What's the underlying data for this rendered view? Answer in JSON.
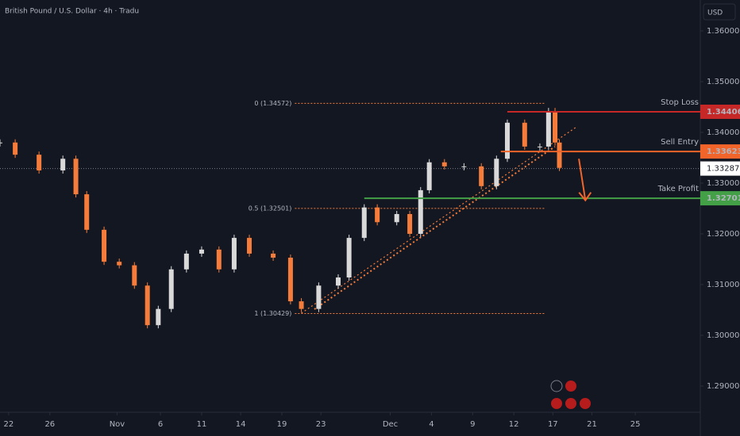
{
  "chart_data": {
    "type": "candlestick",
    "title": "British Pound / U.S. Dollar · 4h · Tradu",
    "currency": "USD",
    "up_color": "#d9d9d9",
    "down_color": "#f57c3a",
    "x": [
      0,
      7,
      18,
      29,
      35,
      40,
      48,
      55,
      62,
      68,
      73,
      79,
      86,
      93,
      101,
      108,
      115,
      126,
      134,
      139,
      147,
      156,
      161,
      168,
      174,
      183,
      189,
      194,
      198,
      205,
      214,
      222,
      229,
      234,
      242,
      249,
      253,
      256,
      258
    ],
    "close": [
      1.338,
      1.3356,
      1.3325,
      1.3348,
      1.3278,
      1.3208,
      1.3145,
      1.3138,
      1.3098,
      1.302,
      1.3052,
      1.313,
      1.3161,
      1.3169,
      1.313,
      1.3192,
      1.3161,
      1.3153,
      1.3067,
      1.3052,
      1.3098,
      1.3114,
      1.3192,
      1.3252,
      1.3223,
      1.3239,
      1.32,
      1.3286,
      1.3341,
      1.3333,
      1.3333,
      1.3294,
      1.3348,
      1.3419,
      1.3372,
      1.3372,
      1.3442,
      1.338,
      1.333
    ],
    "last_price": 1.33287,
    "xlim": [
      0,
      323
    ],
    "ylim": [
      1.28484,
      1.36609
    ],
    "xticks": [
      {
        "value": 4,
        "label": "22"
      },
      {
        "value": 23,
        "label": "26"
      },
      {
        "value": 54,
        "label": "Nov"
      },
      {
        "value": 74,
        "label": "6"
      },
      {
        "value": 93,
        "label": "11"
      },
      {
        "value": 111,
        "label": "14"
      },
      {
        "value": 130,
        "label": "19"
      },
      {
        "value": 148,
        "label": "23"
      },
      {
        "value": 180,
        "label": "Dec"
      },
      {
        "value": 199,
        "label": "4"
      },
      {
        "value": 218,
        "label": "9"
      },
      {
        "value": 237,
        "label": "12"
      },
      {
        "value": 255,
        "label": "17"
      },
      {
        "value": 273,
        "label": "21"
      },
      {
        "value": 293,
        "label": "25"
      }
    ],
    "yticks": [
      {
        "value": 1.36,
        "label": "1.36000"
      },
      {
        "value": 1.35,
        "label": "1.35000"
      },
      {
        "value": 1.34,
        "label": "1.34000"
      },
      {
        "value": 1.33,
        "label": "1.33000"
      },
      {
        "value": 1.32,
        "label": "1.32000"
      },
      {
        "value": 1.31,
        "label": "1.31000"
      },
      {
        "value": 1.3,
        "label": "1.30000"
      },
      {
        "value": 1.29,
        "label": "1.29000"
      }
    ],
    "levels": [
      {
        "name": "Stop Loss",
        "value": 1.34406,
        "color": "#c62828",
        "start": 234
      },
      {
        "name": "Sell Entry",
        "value": 1.33623,
        "color": "#f2652a",
        "start": 231
      },
      {
        "name": "Take Profit",
        "value": 1.32701,
        "color": "#43a047",
        "start": 168
      }
    ],
    "fib": [
      {
        "label": "0 (1.34572)",
        "value": 1.34572
      },
      {
        "label": "0.5 (1.32501)",
        "value": 1.32501
      },
      {
        "label": "1 (1.30429)",
        "value": 1.30429
      }
    ],
    "fib_x": [
      136,
      251
    ],
    "fib_color": "#f57c3a",
    "trendlines": [
      {
        "x": [
          139,
          266
        ],
        "y": [
          1.30437,
          1.3411
        ]
      },
      {
        "x": [
          145,
          256
        ],
        "y": [
          1.30515,
          1.3372
        ]
      }
    ],
    "arrow": {
      "x": [
        267,
        270
      ],
      "y": [
        1.3348,
        1.3266
      ]
    }
  }
}
